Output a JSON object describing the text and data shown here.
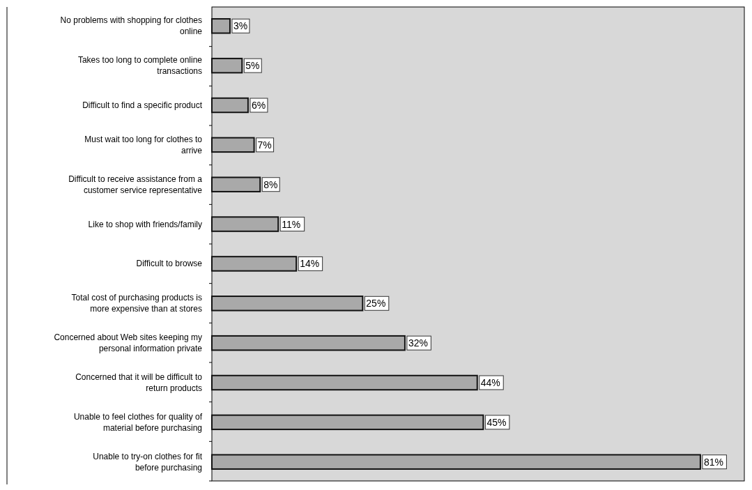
{
  "chart_data": {
    "type": "bar",
    "orientation": "horizontal",
    "categories": [
      "No problems with shopping for clothes online",
      "Takes too long to complete online transactions",
      "Difficult to find a specific product",
      "Must wait too long for clothes to arrive",
      "Difficult to receive assistance from a customer service representative",
      "Like to shop with friends/family",
      "Difficult to browse",
      "Total cost of purchasing products is more expensive than at stores",
      "Concerned about Web sites keeping my personal information private",
      "Concerned that it will be difficult to return products",
      "Unable to feel clothes for quality of material before purchasing",
      "Unable to try-on clothes for fit before purchasing"
    ],
    "values": [
      3,
      5,
      6,
      7,
      8,
      11,
      14,
      25,
      32,
      44,
      45,
      81
    ],
    "value_labels": [
      "3%",
      "5%",
      "6%",
      "7%",
      "8%",
      "11%",
      "14%",
      "25%",
      "32%",
      "44%",
      "45%",
      "81%"
    ],
    "color": "#a9a9a9"
  }
}
